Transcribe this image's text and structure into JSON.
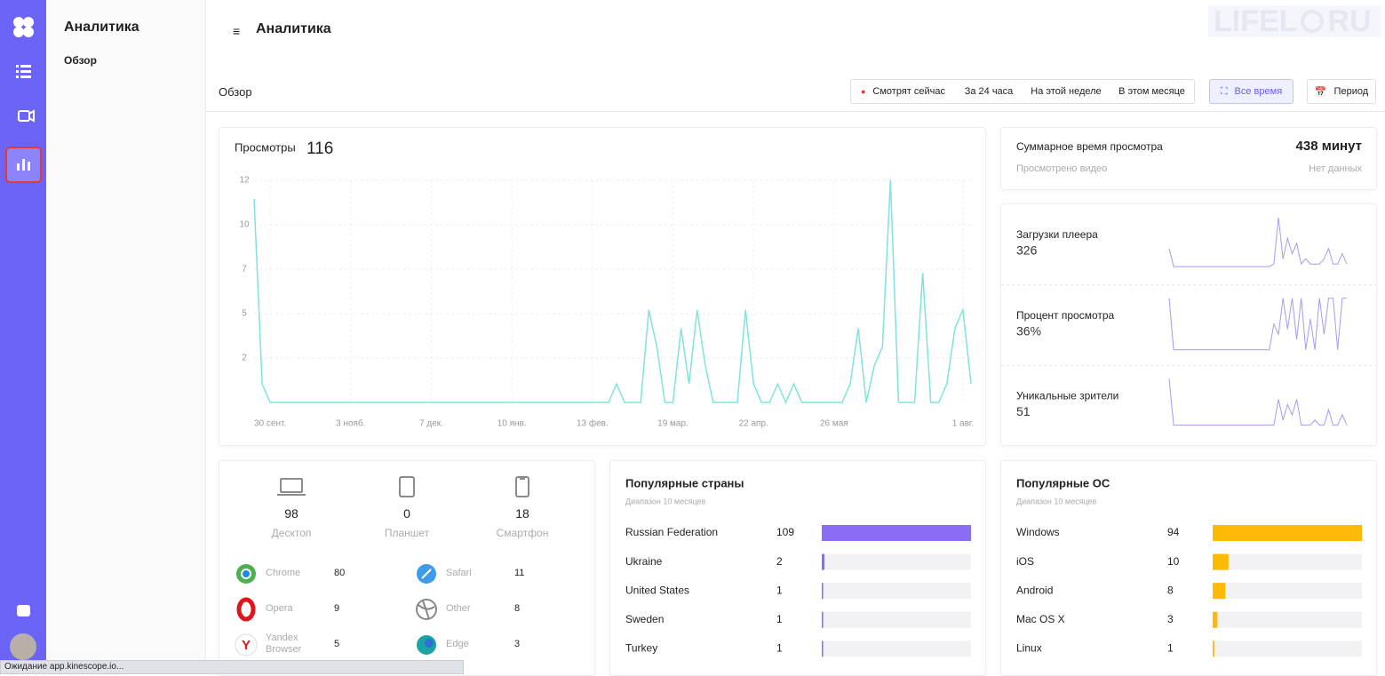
{
  "sidebar": {
    "title": "Аналитика",
    "items": [
      "Обзор"
    ]
  },
  "header": {
    "title": "Аналитика"
  },
  "watermark": [
    "LIFEL",
    "RU"
  ],
  "toolbar": {
    "title": "Обзор",
    "filters": [
      "Смотрят сейчас",
      "За 24 часа",
      "На этой неделе",
      "В этом месяце",
      "Все время"
    ],
    "active_filter": 4,
    "period_button": "Период"
  },
  "summary": {
    "label": "Суммарное время просмотра",
    "value": "438 минут",
    "sub_label": "Просмотрено видео",
    "sub_value": "Нет данных"
  },
  "devices": [
    {
      "name": "Десктоп",
      "count": 98
    },
    {
      "name": "Планшет",
      "count": 0
    },
    {
      "name": "Смартфон",
      "count": 18
    }
  ],
  "browsers": [
    {
      "name": "Chrome",
      "count": 80
    },
    {
      "name": "Safari",
      "count": 11
    },
    {
      "name": "Opera",
      "count": 9
    },
    {
      "name": "Other",
      "count": 8
    },
    {
      "name": "Yandex Browser",
      "count": 5
    },
    {
      "name": "Edge",
      "count": 3
    }
  ],
  "status_bar": "Ожидание app.kinescope.io...",
  "chart_data": [
    {
      "type": "line",
      "title": "Просмотры",
      "total": 116,
      "color": "#7fe3de",
      "categories": [
        null,
        null,
        "30 сент.",
        null,
        null,
        null,
        null,
        null,
        null,
        null,
        null,
        null,
        "3 нояб.",
        null,
        null,
        null,
        null,
        null,
        null,
        null,
        null,
        null,
        "7 дек.",
        null,
        null,
        null,
        null,
        null,
        null,
        null,
        null,
        null,
        "10 янв.",
        null,
        null,
        null,
        null,
        null,
        null,
        null,
        null,
        null,
        "13 фев.",
        null,
        null,
        null,
        null,
        null,
        null,
        null,
        null,
        null,
        "19 мар.",
        null,
        null,
        null,
        null,
        null,
        null,
        null,
        null,
        null,
        "22 апр.",
        null,
        null,
        null,
        null,
        null,
        null,
        null,
        null,
        null,
        "26 мая",
        null,
        null,
        null,
        null,
        null,
        null,
        null,
        null,
        null,
        null,
        null,
        null,
        null,
        null,
        null,
        "1 авг.",
        null
      ],
      "values": [
        11,
        1,
        0,
        0,
        0,
        0,
        0,
        0,
        0,
        0,
        0,
        0,
        0,
        0,
        0,
        0,
        0,
        0,
        0,
        0,
        0,
        0,
        0,
        0,
        0,
        0,
        0,
        0,
        0,
        0,
        0,
        0,
        0,
        0,
        0,
        0,
        0,
        0,
        0,
        0,
        0,
        0,
        0,
        0,
        0,
        1,
        0,
        0,
        0,
        5,
        3,
        0,
        0,
        4,
        1,
        5,
        2,
        0,
        0,
        0,
        0,
        5,
        1,
        0,
        0,
        1,
        0,
        1,
        0,
        0,
        0,
        0,
        0,
        0,
        1,
        4,
        0,
        2,
        3,
        12,
        0,
        0,
        0,
        7,
        0,
        0,
        1,
        4,
        5,
        1
      ],
      "ylim": [
        0,
        12
      ],
      "yticks": [
        {
          "value": 2.4,
          "label": "2"
        },
        {
          "value": 4.8,
          "label": "5"
        },
        {
          "value": 7.2,
          "label": "7"
        },
        {
          "value": 9.6,
          "label": "10"
        },
        {
          "value": 12,
          "label": "12"
        }
      ],
      "grid": true
    },
    {
      "type": "sparkline",
      "title": "Загрузки плеера",
      "total": 326,
      "color": "#a49bf0",
      "ylim": [
        0,
        10
      ],
      "values": [
        4,
        0.5,
        0.5,
        0.5,
        0.5,
        0.5,
        0.5,
        0.5,
        0.5,
        0.5,
        0.5,
        0.5,
        0.5,
        0.5,
        0.5,
        0.5,
        0.5,
        0.5,
        0.5,
        0.5,
        0.5,
        0.5,
        0.5,
        1,
        10,
        2,
        6,
        3,
        5,
        1,
        2,
        1,
        1,
        1,
        2,
        4,
        1,
        1,
        3,
        1
      ]
    },
    {
      "type": "sparkline",
      "title": "Процент просмотра",
      "total": "36%",
      "color": "#a49bf0",
      "ylim": [
        0,
        10
      ],
      "values": [
        10,
        0,
        0,
        0,
        0,
        0,
        0,
        0,
        0,
        0,
        0,
        0,
        0,
        0,
        0,
        0,
        0,
        0,
        0,
        0,
        0,
        0,
        0,
        5,
        3,
        10,
        4,
        10,
        2,
        10,
        0,
        6,
        0,
        10,
        3,
        10,
        10,
        0,
        10,
        10
      ]
    },
    {
      "type": "sparkline",
      "title": "Уникальные зрители",
      "total": 51,
      "color": "#a49bf0",
      "ylim": [
        0,
        10
      ],
      "values": [
        10,
        1,
        1,
        1,
        1,
        1,
        1,
        1,
        1,
        1,
        1,
        1,
        1,
        1,
        1,
        1,
        1,
        1,
        1,
        1,
        1,
        1,
        1,
        1,
        6,
        2,
        5,
        3,
        6,
        1,
        1,
        1,
        2,
        1,
        1,
        4,
        1,
        1,
        3,
        1
      ]
    },
    {
      "type": "hbar",
      "title": "Популярные страны",
      "subtitle": "Диапазон 10 месяцев",
      "color": "#8a6cf5",
      "xlim": [
        0,
        109
      ],
      "categories": [
        "Russian Federation",
        "Ukraine",
        "United States",
        "Sweden",
        "Turkey"
      ],
      "values": [
        109,
        2,
        1,
        1,
        1
      ]
    },
    {
      "type": "hbar",
      "title": "Популярные ОС",
      "subtitle": "Диапазон 10 месяцев",
      "color": "#ffba08",
      "xlim": [
        0,
        94
      ],
      "categories": [
        "Windows",
        "iOS",
        "Android",
        "Mac OS X",
        "Linux"
      ],
      "values": [
        94,
        10,
        8,
        3,
        1
      ]
    }
  ]
}
